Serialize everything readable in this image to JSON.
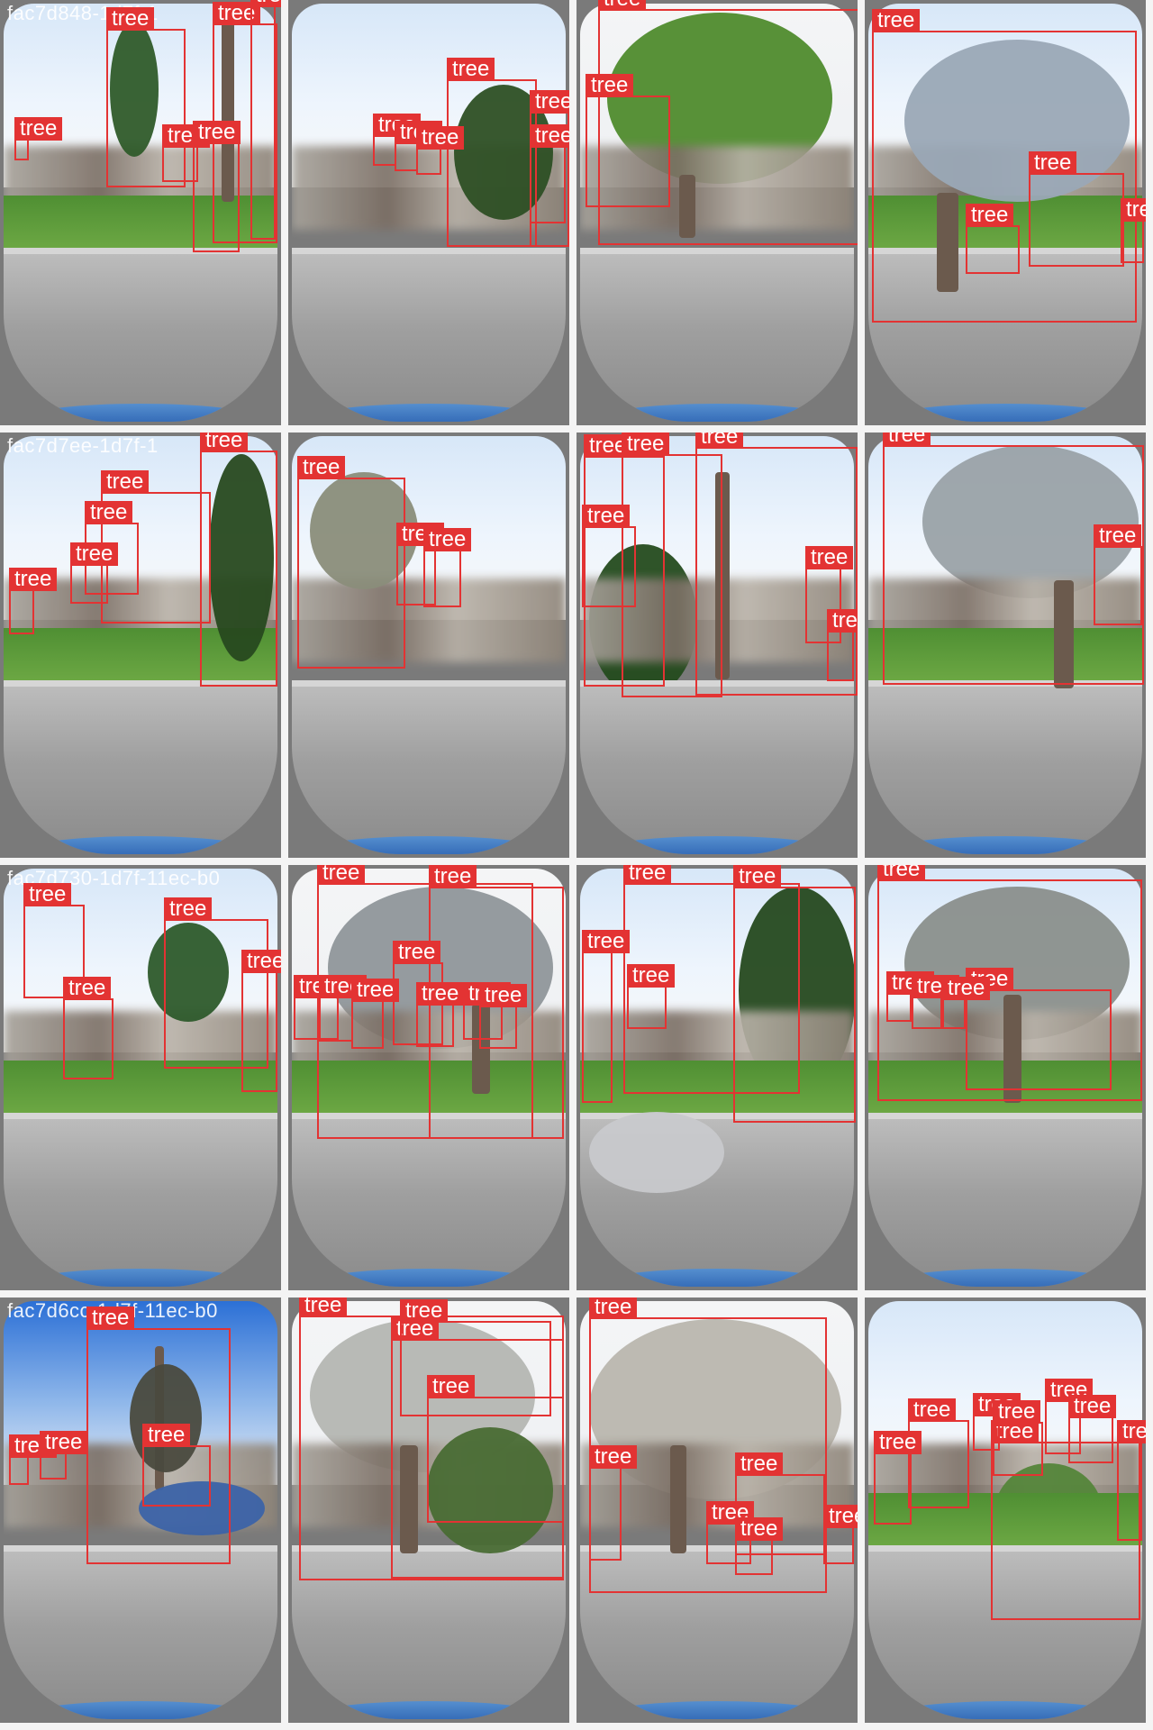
{
  "mosaic": {
    "labels": {
      "tree": "tree"
    },
    "tiles": [
      {
        "name": "r1c1",
        "watermark": "fac7d848-1d7f-1"
      },
      {
        "name": "r1c2",
        "watermark": ""
      },
      {
        "name": "r1c3",
        "watermark": ""
      },
      {
        "name": "r1c4",
        "watermark": ""
      },
      {
        "name": "r2c1",
        "watermark": "fac7d7ee-1d7f-1"
      },
      {
        "name": "r2c2",
        "watermark": ""
      },
      {
        "name": "r2c3",
        "watermark": ""
      },
      {
        "name": "r2c4",
        "watermark": ""
      },
      {
        "name": "r3c1",
        "watermark": "fac7d730-1d7f-11ec-b0"
      },
      {
        "name": "r3c2",
        "watermark": ""
      },
      {
        "name": "r3c3",
        "watermark": ""
      },
      {
        "name": "r3c4",
        "watermark": ""
      },
      {
        "name": "r4c1",
        "watermark": "fac7d6cc-1d7f-11ec-b0"
      },
      {
        "name": "r4c2",
        "watermark": ""
      },
      {
        "name": "r4c3",
        "watermark": ""
      },
      {
        "name": "r4c4",
        "watermark": ""
      }
    ]
  },
  "colors": {
    "box_border": "#e33333",
    "label_bg": "#e33333",
    "label_text": "#ffffff",
    "tile_frame": "#7a7a7a"
  }
}
